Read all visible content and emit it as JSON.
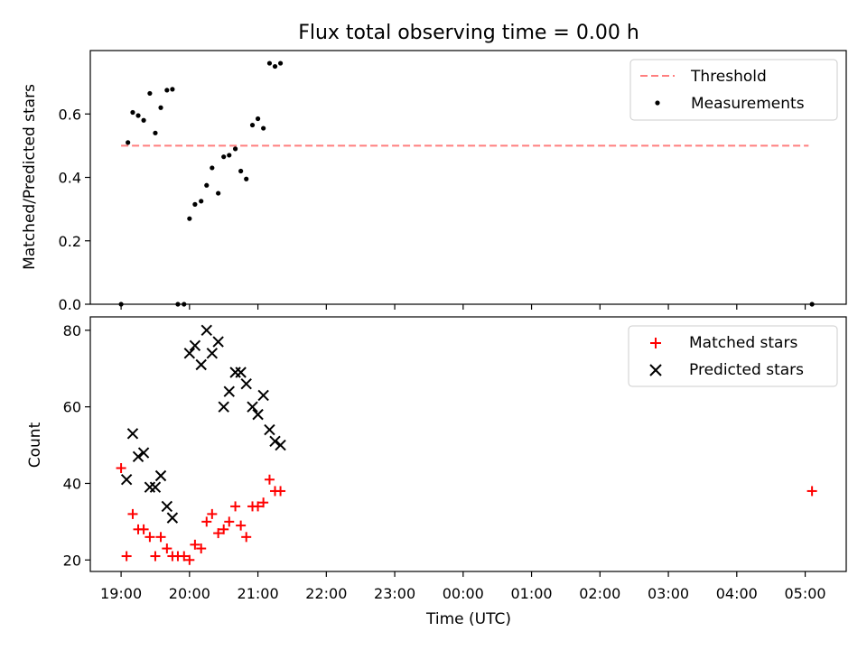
{
  "figure_title": "Flux total observing time = 0.00 h",
  "colors": {
    "threshold": "#ff7f7f",
    "measurements": "#000000",
    "matched": "#ff0000",
    "predicted": "#000000"
  },
  "chart_data": [
    {
      "type": "scatter",
      "title": "Flux total observing time = 0.00 h",
      "xlabel": "",
      "ylabel": "Matched/Predicted stars",
      "x_axis_kind": "time_of_day_hours",
      "xlim_hours": [
        18.55,
        29.6
      ],
      "ylim": [
        0,
        0.8
      ],
      "yticks": [
        "0.0",
        "0.2",
        "0.4",
        "0.6"
      ],
      "ytick_values": [
        0,
        0.2,
        0.4,
        0.6
      ],
      "grid": false,
      "legend_position": "top-right",
      "threshold": {
        "name": "Threshold",
        "value": 0.5,
        "x_range_hours": [
          19.0,
          29.05
        ],
        "style": "dashed",
        "color": "#ff7f7f"
      },
      "series": [
        {
          "name": "Measurements",
          "marker": "dot",
          "color": "#000000",
          "points": [
            [
              19.0,
              0.0
            ],
            [
              19.1,
              0.51
            ],
            [
              19.17,
              0.605
            ],
            [
              19.25,
              0.595
            ],
            [
              19.33,
              0.58
            ],
            [
              19.42,
              0.665
            ],
            [
              19.5,
              0.54
            ],
            [
              19.58,
              0.62
            ],
            [
              19.67,
              0.675
            ],
            [
              19.75,
              0.678
            ],
            [
              19.83,
              0.0
            ],
            [
              19.92,
              0.0
            ],
            [
              20.0,
              0.27
            ],
            [
              20.08,
              0.315
            ],
            [
              20.17,
              0.325
            ],
            [
              20.25,
              0.375
            ],
            [
              20.33,
              0.43
            ],
            [
              20.42,
              0.35
            ],
            [
              20.5,
              0.465
            ],
            [
              20.58,
              0.47
            ],
            [
              20.67,
              0.49
            ],
            [
              20.75,
              0.42
            ],
            [
              20.83,
              0.395
            ],
            [
              20.92,
              0.565
            ],
            [
              21.0,
              0.585
            ],
            [
              21.08,
              0.555
            ],
            [
              21.17,
              0.76
            ],
            [
              21.25,
              0.75
            ],
            [
              21.33,
              0.76
            ],
            [
              29.1,
              0.0
            ]
          ]
        }
      ]
    },
    {
      "type": "scatter",
      "title": "",
      "xlabel": "Time (UTC)",
      "ylabel": "Count",
      "x_axis_kind": "time_of_day_hours",
      "xlim_hours": [
        18.55,
        29.6
      ],
      "ylim": [
        17,
        83.5
      ],
      "yticks": [
        "20",
        "40",
        "60",
        "80"
      ],
      "ytick_values": [
        20,
        40,
        60,
        80
      ],
      "xtick_labels": [
        "19:00",
        "20:00",
        "21:00",
        "22:00",
        "23:00",
        "00:00",
        "01:00",
        "02:00",
        "03:00",
        "04:00",
        "05:00"
      ],
      "xtick_hours": [
        19,
        20,
        21,
        22,
        23,
        24,
        25,
        26,
        27,
        28,
        29
      ],
      "grid": false,
      "legend_position": "top-right",
      "series": [
        {
          "name": "Matched stars",
          "marker": "plus",
          "color": "#ff0000",
          "points": [
            [
              19.0,
              44
            ],
            [
              19.08,
              21
            ],
            [
              19.17,
              32
            ],
            [
              19.25,
              28
            ],
            [
              19.33,
              28
            ],
            [
              19.42,
              26
            ],
            [
              19.5,
              21
            ],
            [
              19.58,
              26
            ],
            [
              19.67,
              23
            ],
            [
              19.75,
              21
            ],
            [
              19.83,
              21
            ],
            [
              19.92,
              21
            ],
            [
              20.0,
              20
            ],
            [
              20.08,
              24
            ],
            [
              20.17,
              23
            ],
            [
              20.25,
              30
            ],
            [
              20.33,
              32
            ],
            [
              20.42,
              27
            ],
            [
              20.5,
              28
            ],
            [
              20.58,
              30
            ],
            [
              20.67,
              34
            ],
            [
              20.75,
              29
            ],
            [
              20.83,
              26
            ],
            [
              20.92,
              34
            ],
            [
              21.0,
              34
            ],
            [
              21.08,
              35
            ],
            [
              21.17,
              41
            ],
            [
              21.25,
              38
            ],
            [
              21.33,
              38
            ],
            [
              29.1,
              38
            ]
          ]
        },
        {
          "name": "Predicted stars",
          "marker": "x",
          "color": "#000000",
          "points": [
            [
              19.08,
              41
            ],
            [
              19.17,
              53
            ],
            [
              19.25,
              47
            ],
            [
              19.33,
              48
            ],
            [
              19.42,
              39
            ],
            [
              19.5,
              39
            ],
            [
              19.58,
              42
            ],
            [
              19.67,
              34
            ],
            [
              19.75,
              31
            ],
            [
              20.0,
              74
            ],
            [
              20.08,
              76
            ],
            [
              20.17,
              71
            ],
            [
              20.25,
              80
            ],
            [
              20.33,
              74
            ],
            [
              20.42,
              77
            ],
            [
              20.5,
              60
            ],
            [
              20.58,
              64
            ],
            [
              20.67,
              69
            ],
            [
              20.75,
              69
            ],
            [
              20.83,
              66
            ],
            [
              20.92,
              60
            ],
            [
              21.0,
              58
            ],
            [
              21.08,
              63
            ],
            [
              21.17,
              54
            ],
            [
              21.25,
              51
            ],
            [
              21.33,
              50
            ]
          ]
        }
      ]
    }
  ]
}
